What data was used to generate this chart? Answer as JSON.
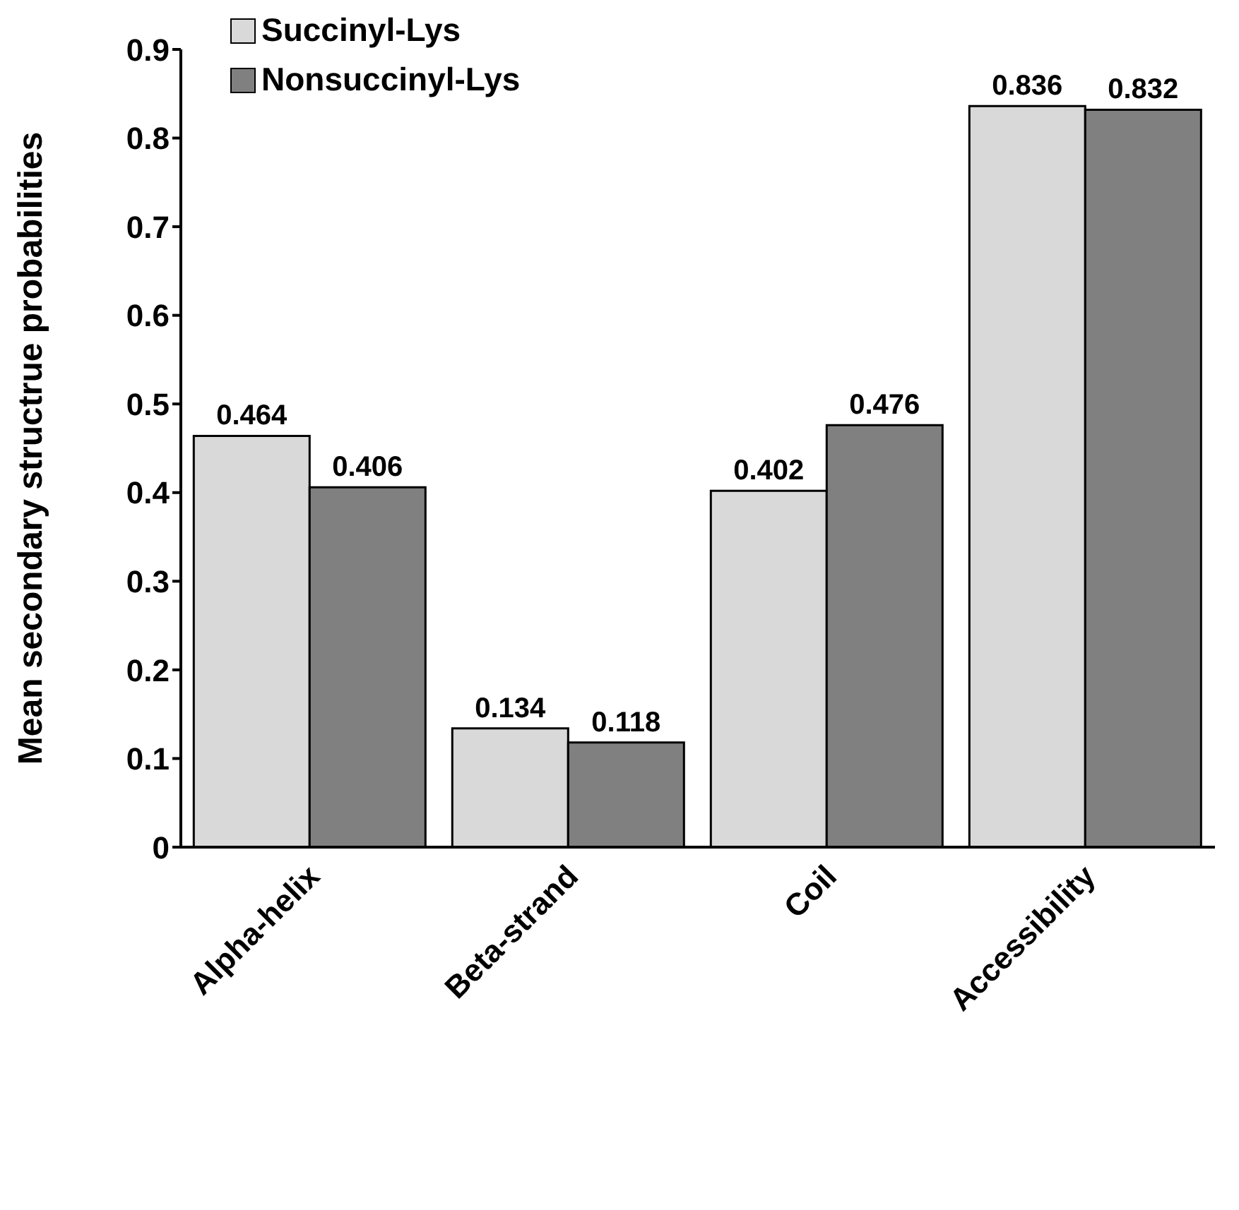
{
  "chart_data": {
    "type": "bar",
    "ylabel": "Mean secondary structrue probabilities",
    "categories": [
      "Alpha-helix",
      "Beta-strand",
      "Coil",
      "Accessibility"
    ],
    "series": [
      {
        "name": "Succinyl-Lys",
        "color": "#d9d9d9",
        "values": [
          0.464,
          0.134,
          0.402,
          0.836
        ]
      },
      {
        "name": "Nonsuccinyl-Lys",
        "color": "#808080",
        "values": [
          0.406,
          0.118,
          0.476,
          0.832
        ]
      }
    ],
    "ylim": [
      0,
      0.9
    ],
    "yticks": [
      0,
      0.1,
      0.2,
      0.3,
      0.4,
      0.5,
      0.6,
      0.7,
      0.8,
      0.9
    ],
    "data_labels": true,
    "legend": "top left",
    "grid": false
  }
}
